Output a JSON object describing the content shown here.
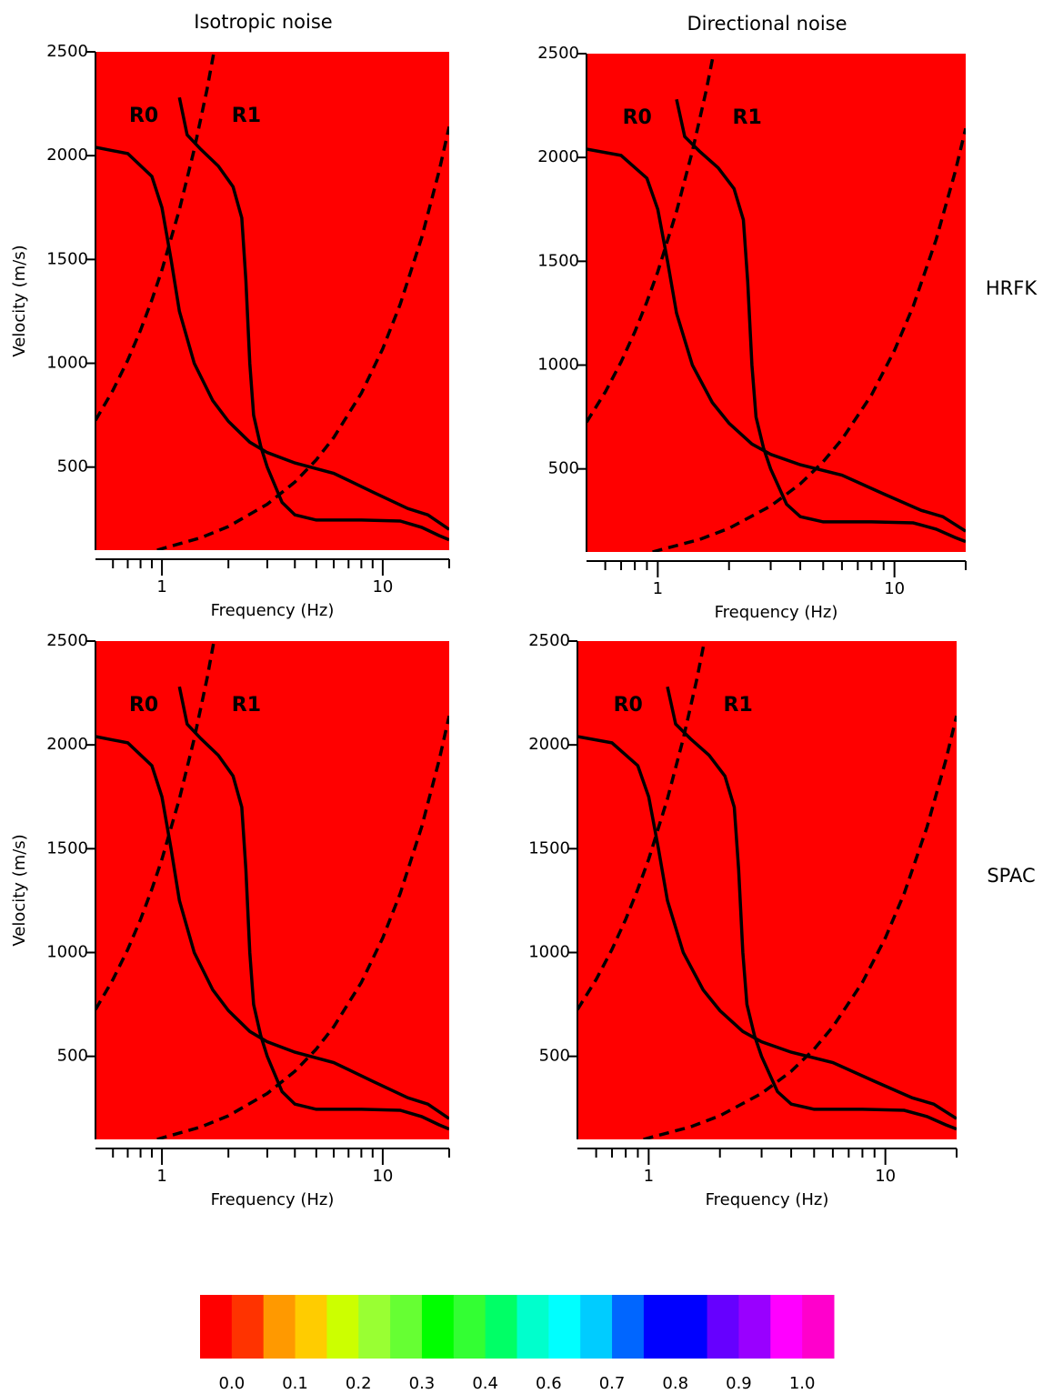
{
  "chart_data": [
    {
      "type": "heatmap",
      "title": "Isotropic noise",
      "ylabel": "Velocity (m/s)",
      "xlabel": "Frequency (Hz)",
      "xscale": "log",
      "xlim": [
        0.5,
        20
      ],
      "ylim": [
        100,
        2500
      ],
      "xticks": [
        1,
        10
      ],
      "xminorticks": [
        0.6,
        0.7,
        0.8,
        0.9,
        2,
        3,
        4,
        5,
        6,
        7,
        8,
        9,
        20
      ],
      "yticks": [
        500,
        1000,
        1500,
        2000,
        2500
      ],
      "background": "#ff0000",
      "series": [
        {
          "name": "R0",
          "color": "#000000",
          "dash": false,
          "x": [
            0.5,
            0.7,
            0.9,
            1.0,
            1.1,
            1.2,
            1.4,
            1.7,
            2.0,
            2.5,
            3,
            4,
            6,
            9,
            13,
            16,
            20
          ],
          "values": [
            2040,
            2010,
            1900,
            1750,
            1500,
            1250,
            1000,
            820,
            720,
            620,
            570,
            520,
            470,
            380,
            300,
            270,
            200
          ]
        },
        {
          "name": "R1",
          "color": "#000000",
          "dash": false,
          "x": [
            1.2,
            1.3,
            1.5,
            1.8,
            2.1,
            2.3,
            2.4,
            2.5,
            2.6,
            2.8,
            3.0,
            3.5,
            4,
            5,
            8,
            12,
            15,
            18,
            20
          ],
          "values": [
            2280,
            2100,
            2030,
            1950,
            1850,
            1700,
            1400,
            1000,
            750,
            600,
            500,
            330,
            270,
            245,
            245,
            240,
            210,
            170,
            150
          ]
        },
        {
          "color": "#000000",
          "dash": true,
          "x": [
            0.5,
            0.6,
            0.7,
            0.8,
            0.9,
            1.0,
            1.2,
            1.4,
            1.6,
            1.72
          ],
          "values": [
            725,
            870,
            1015,
            1160,
            1305,
            1450,
            1740,
            2030,
            2320,
            2500
          ]
        },
        {
          "color": "#000000",
          "dash": true,
          "x": [
            0.95,
            1,
            1.5,
            2,
            3,
            4,
            5,
            6,
            8,
            10,
            12,
            15,
            18,
            20
          ],
          "values": [
            100,
            107,
            160,
            214,
            321,
            428,
            535,
            642,
            856,
            1070,
            1284,
            1605,
            1926,
            2140
          ]
        }
      ]
    },
    {
      "type": "heatmap",
      "title": "Directional noise",
      "row_label": "HRFK",
      "xlabel": "Frequency (Hz)",
      "xscale": "log",
      "xlim": [
        0.5,
        20
      ],
      "ylim": [
        100,
        2500
      ],
      "xticks": [
        1,
        10
      ],
      "xminorticks": [
        0.6,
        0.7,
        0.8,
        0.9,
        2,
        3,
        4,
        5,
        6,
        7,
        8,
        9,
        20
      ],
      "yticks": [
        500,
        1000,
        1500,
        2000,
        2500
      ],
      "background": "#ff0000",
      "series": [
        {
          "name": "R0",
          "color": "#000000",
          "dash": false,
          "x": [
            0.5,
            0.7,
            0.9,
            1.0,
            1.1,
            1.2,
            1.4,
            1.7,
            2.0,
            2.5,
            3,
            4,
            6,
            9,
            13,
            16,
            20
          ],
          "values": [
            2040,
            2010,
            1900,
            1750,
            1500,
            1250,
            1000,
            820,
            720,
            620,
            570,
            520,
            470,
            380,
            300,
            270,
            200
          ]
        },
        {
          "name": "R1",
          "color": "#000000",
          "dash": false,
          "x": [
            1.2,
            1.3,
            1.5,
            1.8,
            2.1,
            2.3,
            2.4,
            2.5,
            2.6,
            2.8,
            3.0,
            3.5,
            4,
            5,
            8,
            12,
            15,
            18,
            20
          ],
          "values": [
            2280,
            2100,
            2030,
            1950,
            1850,
            1700,
            1400,
            1000,
            750,
            600,
            500,
            330,
            270,
            245,
            245,
            240,
            210,
            170,
            150
          ]
        },
        {
          "color": "#000000",
          "dash": true,
          "x": [
            0.5,
            0.6,
            0.7,
            0.8,
            0.9,
            1.0,
            1.2,
            1.4,
            1.6,
            1.72
          ],
          "values": [
            725,
            870,
            1015,
            1160,
            1305,
            1450,
            1740,
            2030,
            2320,
            2500
          ]
        },
        {
          "color": "#000000",
          "dash": true,
          "x": [
            0.95,
            1,
            1.5,
            2,
            3,
            4,
            5,
            6,
            8,
            10,
            12,
            15,
            18,
            20
          ],
          "values": [
            100,
            107,
            160,
            214,
            321,
            428,
            535,
            642,
            856,
            1070,
            1284,
            1605,
            1926,
            2140
          ]
        }
      ]
    },
    {
      "type": "heatmap",
      "ylabel": "Velocity (m/s)",
      "xlabel": "Frequency (Hz)",
      "xscale": "log",
      "xlim": [
        0.5,
        20
      ],
      "ylim": [
        100,
        2500
      ],
      "xticks": [
        1,
        10
      ],
      "xminorticks": [
        0.6,
        0.7,
        0.8,
        0.9,
        2,
        3,
        4,
        5,
        6,
        7,
        8,
        9,
        20
      ],
      "yticks": [
        500,
        1000,
        1500,
        2000,
        2500
      ],
      "background": "#ff0000",
      "series": [
        {
          "name": "R0",
          "color": "#000000",
          "dash": false,
          "x": [
            0.5,
            0.7,
            0.9,
            1.0,
            1.1,
            1.2,
            1.4,
            1.7,
            2.0,
            2.5,
            3,
            4,
            6,
            9,
            13,
            16,
            20
          ],
          "values": [
            2040,
            2010,
            1900,
            1750,
            1500,
            1250,
            1000,
            820,
            720,
            620,
            570,
            520,
            470,
            380,
            300,
            270,
            200
          ]
        },
        {
          "name": "R1",
          "color": "#000000",
          "dash": false,
          "x": [
            1.2,
            1.3,
            1.5,
            1.8,
            2.1,
            2.3,
            2.4,
            2.5,
            2.6,
            2.8,
            3.0,
            3.5,
            4,
            5,
            8,
            12,
            15,
            18,
            20
          ],
          "values": [
            2280,
            2100,
            2030,
            1950,
            1850,
            1700,
            1400,
            1000,
            750,
            600,
            500,
            330,
            270,
            245,
            245,
            240,
            210,
            170,
            150
          ]
        },
        {
          "color": "#000000",
          "dash": true,
          "x": [
            0.5,
            0.6,
            0.7,
            0.8,
            0.9,
            1.0,
            1.2,
            1.4,
            1.6,
            1.72
          ],
          "values": [
            725,
            870,
            1015,
            1160,
            1305,
            1450,
            1740,
            2030,
            2320,
            2500
          ]
        },
        {
          "color": "#000000",
          "dash": true,
          "x": [
            0.95,
            1,
            1.5,
            2,
            3,
            4,
            5,
            6,
            8,
            10,
            12,
            15,
            18,
            20
          ],
          "values": [
            100,
            107,
            160,
            214,
            321,
            428,
            535,
            642,
            856,
            1070,
            1284,
            1605,
            1926,
            2140
          ]
        }
      ]
    },
    {
      "type": "heatmap",
      "row_label": "SPAC",
      "xlabel": "Frequency (Hz)",
      "xscale": "log",
      "xlim": [
        0.5,
        20
      ],
      "ylim": [
        100,
        2500
      ],
      "xticks": [
        1,
        10
      ],
      "xminorticks": [
        0.6,
        0.7,
        0.8,
        0.9,
        2,
        3,
        4,
        5,
        6,
        7,
        8,
        9,
        20
      ],
      "yticks": [
        500,
        1000,
        1500,
        2000,
        2500
      ],
      "background": "#ff0000",
      "series": [
        {
          "name": "R0",
          "color": "#000000",
          "dash": false,
          "x": [
            0.5,
            0.7,
            0.9,
            1.0,
            1.1,
            1.2,
            1.4,
            1.7,
            2.0,
            2.5,
            3,
            4,
            6,
            9,
            13,
            16,
            20
          ],
          "values": [
            2040,
            2010,
            1900,
            1750,
            1500,
            1250,
            1000,
            820,
            720,
            620,
            570,
            520,
            470,
            380,
            300,
            270,
            200
          ]
        },
        {
          "name": "R1",
          "color": "#000000",
          "dash": false,
          "x": [
            1.2,
            1.3,
            1.5,
            1.8,
            2.1,
            2.3,
            2.4,
            2.5,
            2.6,
            2.8,
            3.0,
            3.5,
            4,
            5,
            8,
            12,
            15,
            18,
            20
          ],
          "values": [
            2280,
            2100,
            2030,
            1950,
            1850,
            1700,
            1400,
            1000,
            750,
            600,
            500,
            330,
            270,
            245,
            245,
            240,
            210,
            170,
            150
          ]
        },
        {
          "color": "#000000",
          "dash": true,
          "x": [
            0.5,
            0.6,
            0.7,
            0.8,
            0.9,
            1.0,
            1.2,
            1.4,
            1.6,
            1.72
          ],
          "values": [
            725,
            870,
            1015,
            1160,
            1305,
            1450,
            1740,
            2030,
            2320,
            2500
          ]
        },
        {
          "color": "#000000",
          "dash": true,
          "x": [
            0.95,
            1,
            1.5,
            2,
            3,
            4,
            5,
            6,
            8,
            10,
            12,
            15,
            18,
            20
          ],
          "values": [
            100,
            107,
            160,
            214,
            321,
            428,
            535,
            642,
            856,
            1070,
            1284,
            1605,
            1926,
            2140
          ]
        }
      ]
    },
    {
      "type": "colorbar",
      "colors": [
        "#ff0000",
        "#ff3300",
        "#ff9900",
        "#ffcc00",
        "#ccff00",
        "#99ff33",
        "#66ff33",
        "#00ff00",
        "#33ff33",
        "#00ff66",
        "#00ffcc",
        "#00ffff",
        "#00ccff",
        "#0066ff",
        "#0000ff",
        "#0000ff",
        "#6600ff",
        "#9900ff",
        "#ff00ff",
        "#ff00cc"
      ],
      "tick_labels": [
        "0.0",
        "0.1",
        "0.2",
        "0.3",
        "0.4",
        "0.6",
        "0.7",
        "0.8",
        "0.9",
        "1.0"
      ]
    }
  ]
}
